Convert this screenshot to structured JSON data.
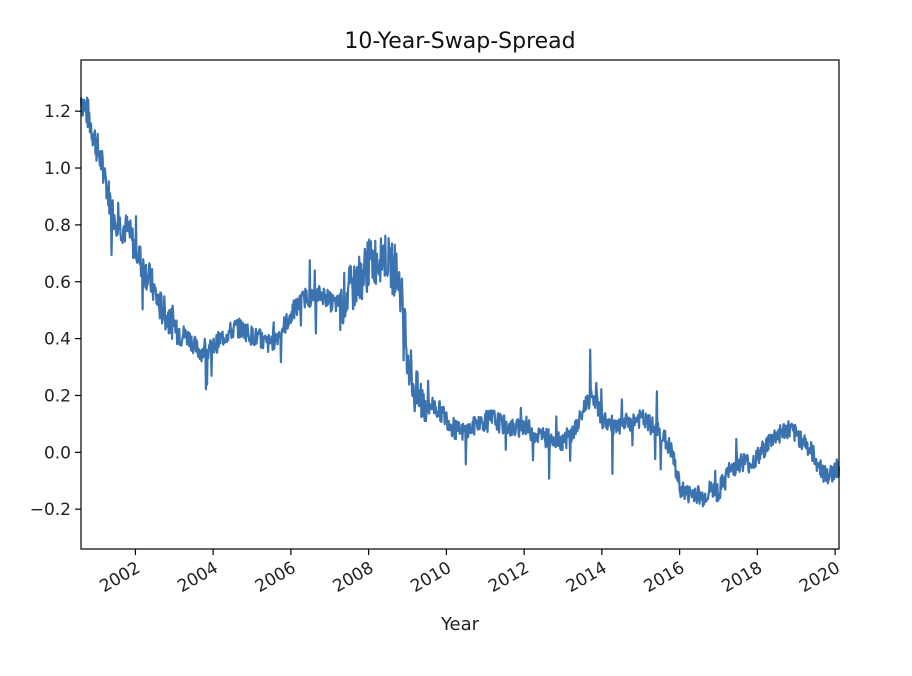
{
  "chart_data": {
    "type": "line",
    "title": "10-Year-Swap-Spread",
    "xlabel": "Year",
    "ylabel": "",
    "xlim": [
      2000.6,
      2020.1
    ],
    "ylim": [
      -0.34,
      1.38
    ],
    "x_ticks": [
      2002,
      2004,
      2006,
      2008,
      2010,
      2012,
      2014,
      2016,
      2018,
      2020
    ],
    "x_tick_labels": [
      "2002",
      "2004",
      "2006",
      "2008",
      "2010",
      "2012",
      "2014",
      "2016",
      "2018",
      "2020"
    ],
    "y_ticks": [
      -0.2,
      0.0,
      0.2,
      0.4,
      0.6,
      0.8,
      1.0,
      1.2
    ],
    "y_tick_labels": [
      "−0.2",
      "0.0",
      "0.2",
      "0.4",
      "0.6",
      "0.8",
      "1.0",
      "1.2"
    ],
    "grid": false,
    "line_color": "#3b73b0",
    "series": [
      {
        "x": [
          2000.6,
          2000.8,
          2001.0,
          2001.2,
          2001.4,
          2001.6,
          2001.8,
          2002.0,
          2002.2,
          2002.4,
          2002.6,
          2002.8,
          2003.0,
          2003.2,
          2003.4,
          2003.6,
          2003.8,
          2004.0,
          2004.2,
          2004.4,
          2004.6,
          2004.8,
          2005.0,
          2005.2,
          2005.4,
          2005.6,
          2005.8,
          2006.0,
          2006.2,
          2006.4,
          2006.6,
          2006.8,
          2007.0,
          2007.2,
          2007.4,
          2007.6,
          2007.8,
          2008.0,
          2008.2,
          2008.4,
          2008.6,
          2008.8,
          2009.0,
          2009.2,
          2009.4,
          2009.6,
          2009.8,
          2010.0,
          2010.2,
          2010.4,
          2010.6,
          2010.8,
          2011.0,
          2011.2,
          2011.4,
          2011.6,
          2011.8,
          2012.0,
          2012.2,
          2012.4,
          2012.6,
          2012.8,
          2013.0,
          2013.2,
          2013.4,
          2013.6,
          2013.8,
          2014.0,
          2014.2,
          2014.4,
          2014.6,
          2014.8,
          2015.0,
          2015.2,
          2015.4,
          2015.6,
          2015.8,
          2016.0,
          2016.2,
          2016.4,
          2016.6,
          2016.8,
          2017.0,
          2017.2,
          2017.4,
          2017.6,
          2017.8,
          2018.0,
          2018.2,
          2018.4,
          2018.6,
          2018.8,
          2019.0,
          2019.2,
          2019.4,
          2019.6,
          2019.8,
          2020.0,
          2020.1
        ],
        "values": [
          1.25,
          1.18,
          1.08,
          0.98,
          0.85,
          0.8,
          0.78,
          0.72,
          0.65,
          0.6,
          0.52,
          0.48,
          0.45,
          0.42,
          0.4,
          0.36,
          0.35,
          0.37,
          0.4,
          0.42,
          0.44,
          0.43,
          0.41,
          0.4,
          0.38,
          0.4,
          0.44,
          0.48,
          0.52,
          0.55,
          0.54,
          0.56,
          0.53,
          0.52,
          0.55,
          0.58,
          0.62,
          0.66,
          0.68,
          0.7,
          0.65,
          0.6,
          0.35,
          0.2,
          0.18,
          0.17,
          0.15,
          0.12,
          0.08,
          0.07,
          0.08,
          0.1,
          0.11,
          0.12,
          0.1,
          0.09,
          0.08,
          0.1,
          0.07,
          0.06,
          0.05,
          0.05,
          0.04,
          0.06,
          0.1,
          0.18,
          0.2,
          0.12,
          0.1,
          0.08,
          0.1,
          0.11,
          0.12,
          0.1,
          0.08,
          0.05,
          0.0,
          -0.12,
          -0.15,
          -0.14,
          -0.16,
          -0.13,
          -0.14,
          -0.08,
          -0.05,
          -0.03,
          -0.04,
          -0.02,
          0.02,
          0.05,
          0.07,
          0.08,
          0.06,
          0.04,
          0.0,
          -0.05,
          -0.09,
          -0.06,
          -0.05
        ]
      }
    ]
  }
}
